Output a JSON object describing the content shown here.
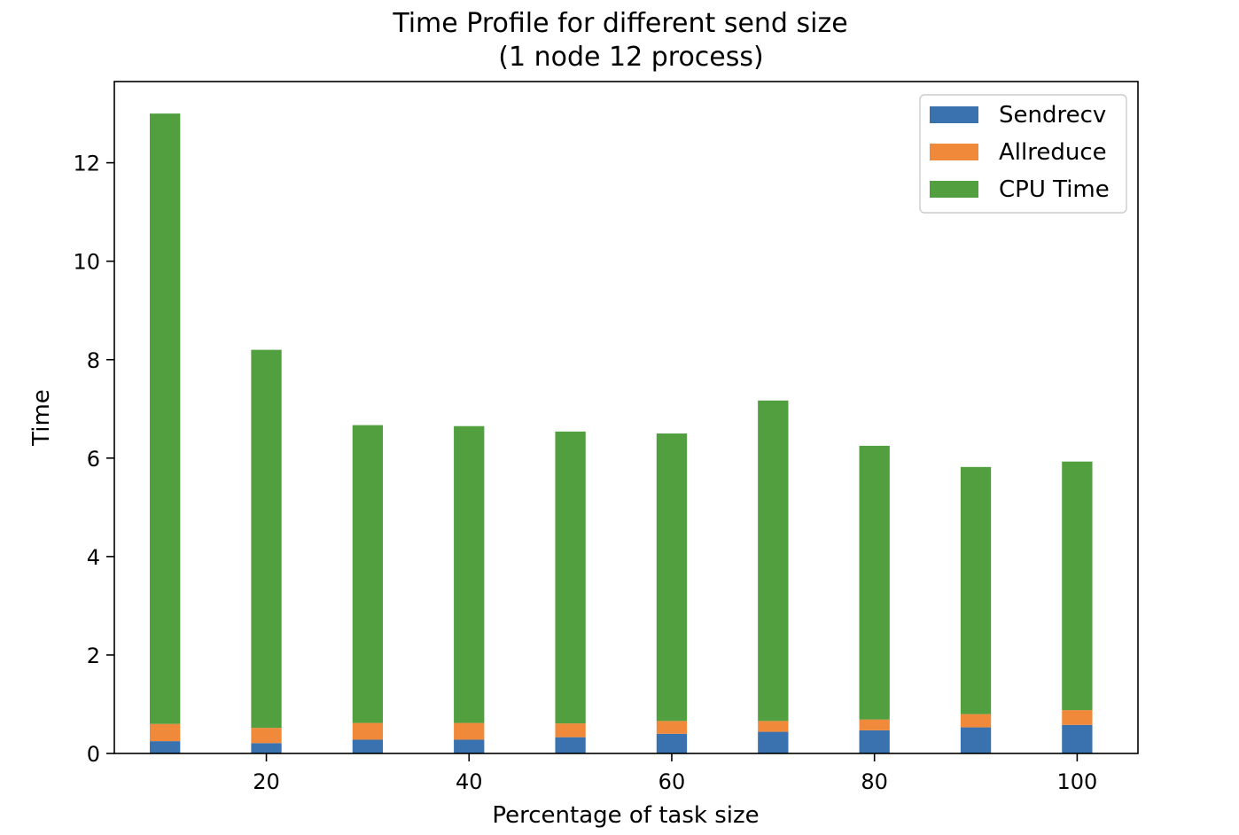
{
  "chart_data": {
    "type": "bar",
    "stacked": true,
    "title": "Time Profile for different send size",
    "subtitle": "(1 node 12 process)",
    "xlabel": "Percentage of task size",
    "ylabel": "Time",
    "x": [
      10,
      20,
      30,
      40,
      50,
      60,
      70,
      80,
      90,
      100
    ],
    "xlim": [
      5,
      106
    ],
    "ylim": [
      0,
      13.65
    ],
    "xticks": [
      20,
      40,
      60,
      80,
      100
    ],
    "yticks": [
      0,
      2,
      4,
      6,
      8,
      10,
      12
    ],
    "legend": "top-right",
    "grid": false,
    "bar_width": 3,
    "series": [
      {
        "name": "Sendrecv",
        "color": "#3a72b0",
        "values": [
          0.25,
          0.21,
          0.28,
          0.28,
          0.33,
          0.4,
          0.44,
          0.47,
          0.53,
          0.58
        ]
      },
      {
        "name": "Allreduce",
        "color": "#f0893a",
        "values": [
          0.35,
          0.31,
          0.34,
          0.34,
          0.28,
          0.26,
          0.22,
          0.22,
          0.27,
          0.3
        ]
      },
      {
        "name": "CPU Time",
        "color": "#519f3f",
        "values": [
          12.4,
          7.68,
          6.05,
          6.03,
          5.93,
          5.84,
          6.51,
          5.56,
          5.02,
          5.05
        ]
      }
    ]
  }
}
